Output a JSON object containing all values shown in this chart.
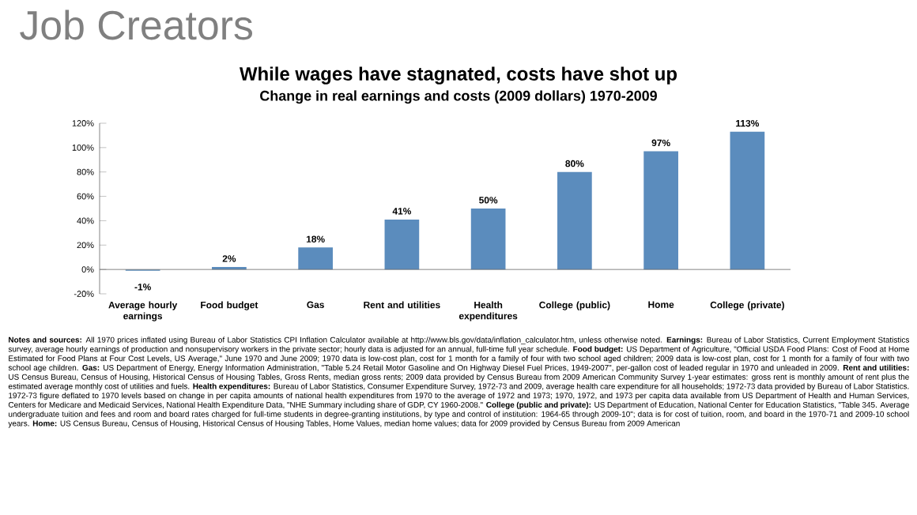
{
  "chart_data": {
    "type": "bar",
    "title": "Job Creators",
    "subtitle": "While wages have stagnated, costs have shot up",
    "annotations": [
      "Change in real earnings and costs (2009 dollars) 1970-2009",
      "**Notes and sources:** All 1970 prices inflated using Bureau of Labor Statistics CPI Inflation Calculator available at http://www.bls.gov/data/inflation_calculator.htm, unless otherwise noted. **Earnings:** Bureau of Labor Statistics, Current Employment Statistics survey, average hourly earnings of production and nonsupervisory workers in the private sector; hourly data is adjusted for an annual, full-time full year schedule. **Food budget:** US Department of Agriculture, \"Official USDA Food Plans: Cost of Food at Home Estimated for Food Plans at Four Cost Levels, US Average,\" June 1970 and June 2009; 1970 data is low-cost plan, cost for 1 month for a family of four with two school aged children; 2009 data is low-cost plan, cost for 1 month for a family of four with two school age children. **Gas:** US Department of Energy, Energy Information Administration, \"Table 5.24 Retail Motor Gasoline and On Highway Diesel Fuel Prices, 1949-2007\", per-gallon cost of leaded regular in 1970 and unleaded in 2009. **Rent and utilities:** US Census Bureau, Census of Housing, Historical Census of Housing Tables, Gross Rents, median gross rents; 2009 data provided by Census Bureau from 2009 American Community Survey 1-year estimates: gross rent is monthly amount of rent plus the estimated average monthly cost of utilities and fuels. **Health expenditures:** Bureau of Labor Statistics, Consumer Expenditure Survey, 1972-73 and 2009, average health care expenditure for all households; 1972-73 data provided by Bureau of Labor Statistics. 1972-73 figure deflated to 1970 levels based on change in per capita amounts of national health expenditures from 1970 to the average of 1972 and 1973; 1970, 1972, and 1973 per capita data available from US Department of Health and Human Services, Centers for Medicare and Medicaid Services, National Health Expenditure Data, \"NHE Summary including share of GDP, CY 1960-2008.\" **College (public and private):** US Department of Education, National Center for Education Statistics, \"Table 345. Average undergraduate tuition and fees and room and board rates charged for full-time students in degree-granting institutions, by type and control of institution: 1964-65 through 2009-10\"; data is for cost of tuition, room, and board in the 1970-71 and 2009-10 school years. **Home:** US Census Bureau, Census of Housing, Historical Census of Housing Tables, Home Values, median home values; data for 2009 provided by Census Bureau from 2009 American"
    ],
    "categories": [
      "Average hourly earnings",
      "Food budget",
      "Gas",
      "Rent and utilities",
      "Health expenditures",
      "College (public)",
      "Home",
      "College (private)"
    ],
    "values": [
      -1,
      2,
      18,
      41,
      50,
      80,
      97,
      113
    ],
    "value_labels": [
      "-1%",
      "2%",
      "18%",
      "41%",
      "50%",
      "80%",
      "97%",
      "113%"
    ],
    "color": "#5b8cbd",
    "ylim": [
      -20,
      120
    ],
    "yticks": [
      {
        "value": -20,
        "label": "-20%"
      },
      {
        "value": 0,
        "label": "0%"
      },
      {
        "value": 20,
        "label": "20%"
      },
      {
        "value": 40,
        "label": "40%"
      },
      {
        "value": 60,
        "label": "60%"
      },
      {
        "value": 80,
        "label": "80%"
      },
      {
        "value": 100,
        "label": "100%"
      },
      {
        "value": 120,
        "label": "120%"
      }
    ]
  }
}
